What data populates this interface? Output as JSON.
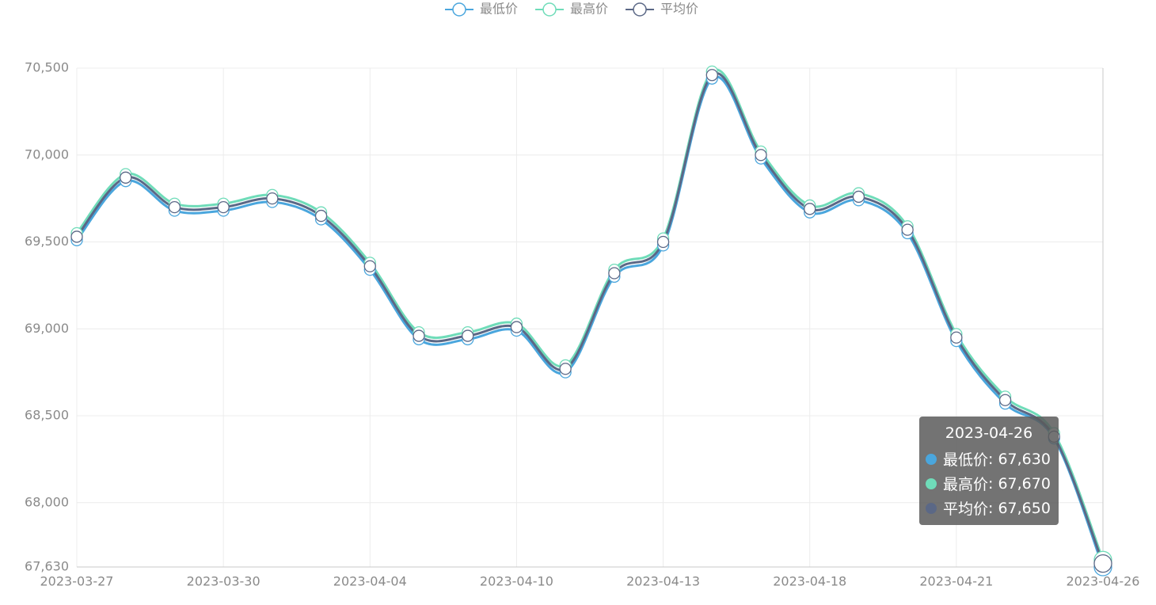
{
  "chart_data": {
    "type": "line",
    "categories": [
      "2023-03-27",
      null,
      null,
      "2023-03-30",
      null,
      null,
      "2023-04-04",
      null,
      null,
      "2023-04-10",
      null,
      null,
      "2023-04-13",
      null,
      null,
      "2023-04-18",
      null,
      null,
      "2023-04-21",
      null,
      null,
      "2023-04-26"
    ],
    "series": [
      {
        "name": "最低价",
        "color": "#4aa6dd",
        "values": [
          69510,
          69850,
          69680,
          69680,
          69730,
          69630,
          69340,
          68940,
          68940,
          68990,
          68750,
          69300,
          69480,
          70440,
          69980,
          69670,
          69740,
          69550,
          68930,
          68570,
          68370,
          67630
        ],
        "value_labels": [
          null,
          null,
          null,
          null,
          null,
          null,
          null,
          null,
          null,
          null,
          null,
          null,
          null,
          null,
          null,
          null,
          null,
          null,
          null,
          null,
          null,
          "67,630"
        ]
      },
      {
        "name": "最高价",
        "color": "#6fdcb9",
        "values": [
          69550,
          69890,
          69720,
          69720,
          69770,
          69670,
          69380,
          68980,
          68980,
          69030,
          68790,
          69340,
          69520,
          70480,
          70020,
          69710,
          69780,
          69590,
          68970,
          68610,
          68400,
          67670
        ],
        "value_labels": [
          null,
          null,
          null,
          null,
          null,
          null,
          null,
          null,
          null,
          null,
          null,
          null,
          null,
          null,
          null,
          null,
          null,
          null,
          null,
          null,
          null,
          "67,670"
        ]
      },
      {
        "name": "平均价",
        "color": "#5b6886",
        "values": [
          69530,
          69870,
          69700,
          69700,
          69750,
          69650,
          69360,
          68960,
          68960,
          69010,
          68770,
          69320,
          69500,
          70460,
          70000,
          69690,
          69760,
          69570,
          68950,
          68590,
          68380,
          67650
        ],
        "value_labels": [
          null,
          null,
          null,
          null,
          null,
          null,
          null,
          null,
          null,
          null,
          null,
          null,
          null,
          null,
          null,
          null,
          null,
          null,
          null,
          null,
          null,
          "67,650"
        ]
      }
    ],
    "ylim": [
      67630,
      70500
    ],
    "yticks": [
      {
        "value": 67630,
        "label": "67,630"
      },
      {
        "value": 68000,
        "label": "68,000"
      },
      {
        "value": 68500,
        "label": "68,500"
      },
      {
        "value": 69000,
        "label": "69,000"
      },
      {
        "value": 69500,
        "label": "69,500"
      },
      {
        "value": 70000,
        "label": "70,000"
      },
      {
        "value": 70500,
        "label": "70,500"
      }
    ],
    "grid": true,
    "smooth": true,
    "legend": "top",
    "tooltip_index": 21
  }
}
